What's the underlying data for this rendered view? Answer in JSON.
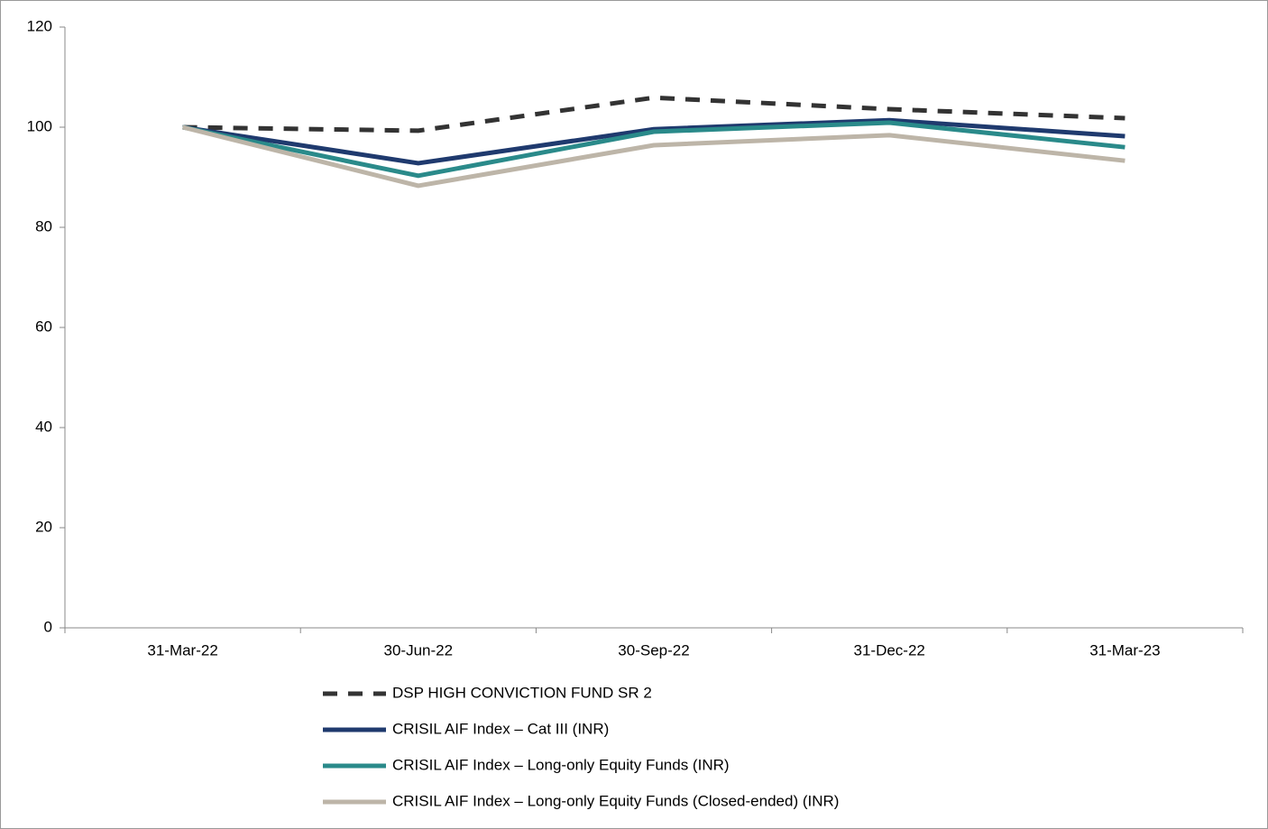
{
  "chart_data": {
    "type": "line",
    "categories": [
      "31-Mar-22",
      "30-Jun-22",
      "30-Sep-22",
      "31-Dec-22",
      "31-Mar-23"
    ],
    "series": [
      {
        "name": "DSP HIGH CONVICTION FUND SR 2",
        "color": "#333333",
        "dash": true,
        "values": [
          100,
          99.3,
          105.9,
          103.6,
          101.8
        ]
      },
      {
        "name": "CRISIL AIF Index – Cat III (INR)",
        "color": "#1f3a6e",
        "dash": false,
        "values": [
          100,
          92.8,
          99.6,
          101.4,
          98.2
        ]
      },
      {
        "name": "CRISIL AIF Index – Long-only Equity Funds (INR)",
        "color": "#2a8a8a",
        "dash": false,
        "values": [
          100,
          90.3,
          99.1,
          100.9,
          96.0
        ]
      },
      {
        "name": "CRISIL AIF Index – Long-only Equity Funds (Closed-ended) (INR)",
        "color": "#bdb5a8",
        "dash": false,
        "values": [
          100,
          88.3,
          96.4,
          98.4,
          93.3
        ]
      }
    ],
    "ylim": [
      0,
      120
    ],
    "yticks": [
      0,
      20,
      40,
      60,
      80,
      100,
      120
    ],
    "grid": false,
    "legend": "bottom"
  }
}
